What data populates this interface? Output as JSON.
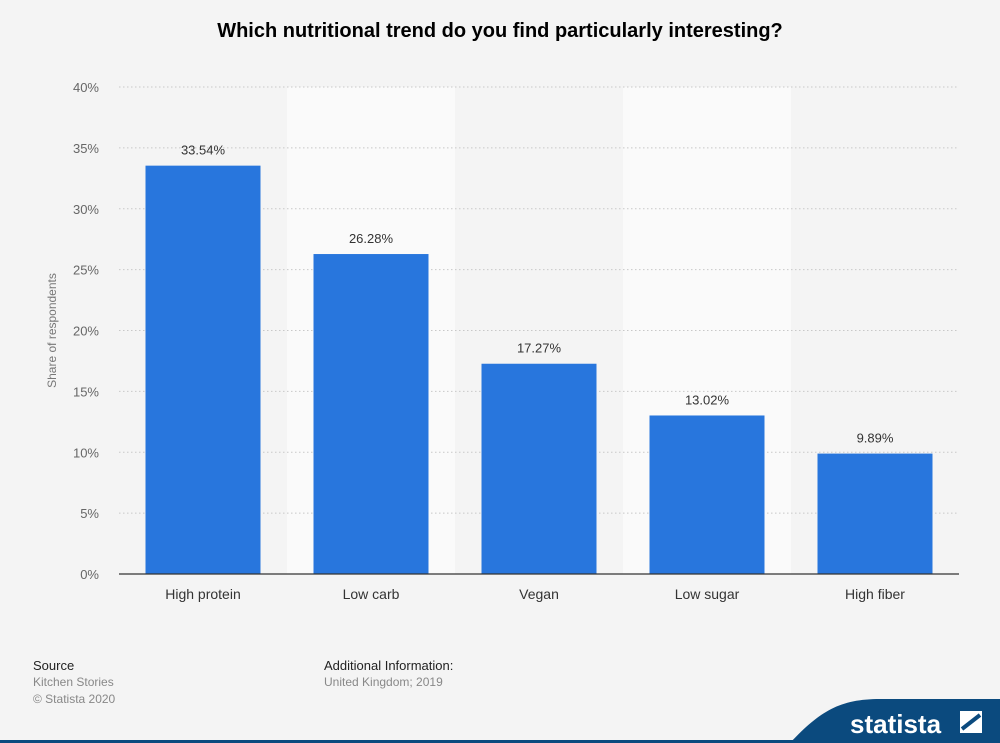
{
  "chart_data": {
    "type": "bar",
    "title": "Which nutritional trend do you find particularly interesting?",
    "categories": [
      "High protein",
      "Low carb",
      "Vegan",
      "Low sugar",
      "High fiber"
    ],
    "values": [
      33.54,
      26.28,
      17.27,
      13.02,
      9.89
    ],
    "value_labels": [
      "33.54%",
      "26.28%",
      "17.27%",
      "13.02%",
      "9.89%"
    ],
    "ylabel": "Share of respondents",
    "xlabel": "",
    "ylim": [
      0,
      40
    ],
    "yticks": [
      0,
      5,
      10,
      15,
      20,
      25,
      30,
      35,
      40
    ],
    "ytick_labels": [
      "0%",
      "5%",
      "10%",
      "15%",
      "20%",
      "25%",
      "30%",
      "35%",
      "40%"
    ],
    "grid": true,
    "bar_color": "#2876dd"
  },
  "footer": {
    "source_heading": "Source",
    "source_lines": [
      "Kitchen Stories",
      "© Statista 2020"
    ],
    "info_heading": "Additional Information:",
    "info_line": "United Kingdom; 2019"
  },
  "brand": {
    "name": "statista",
    "color": "#0b4a7e"
  }
}
